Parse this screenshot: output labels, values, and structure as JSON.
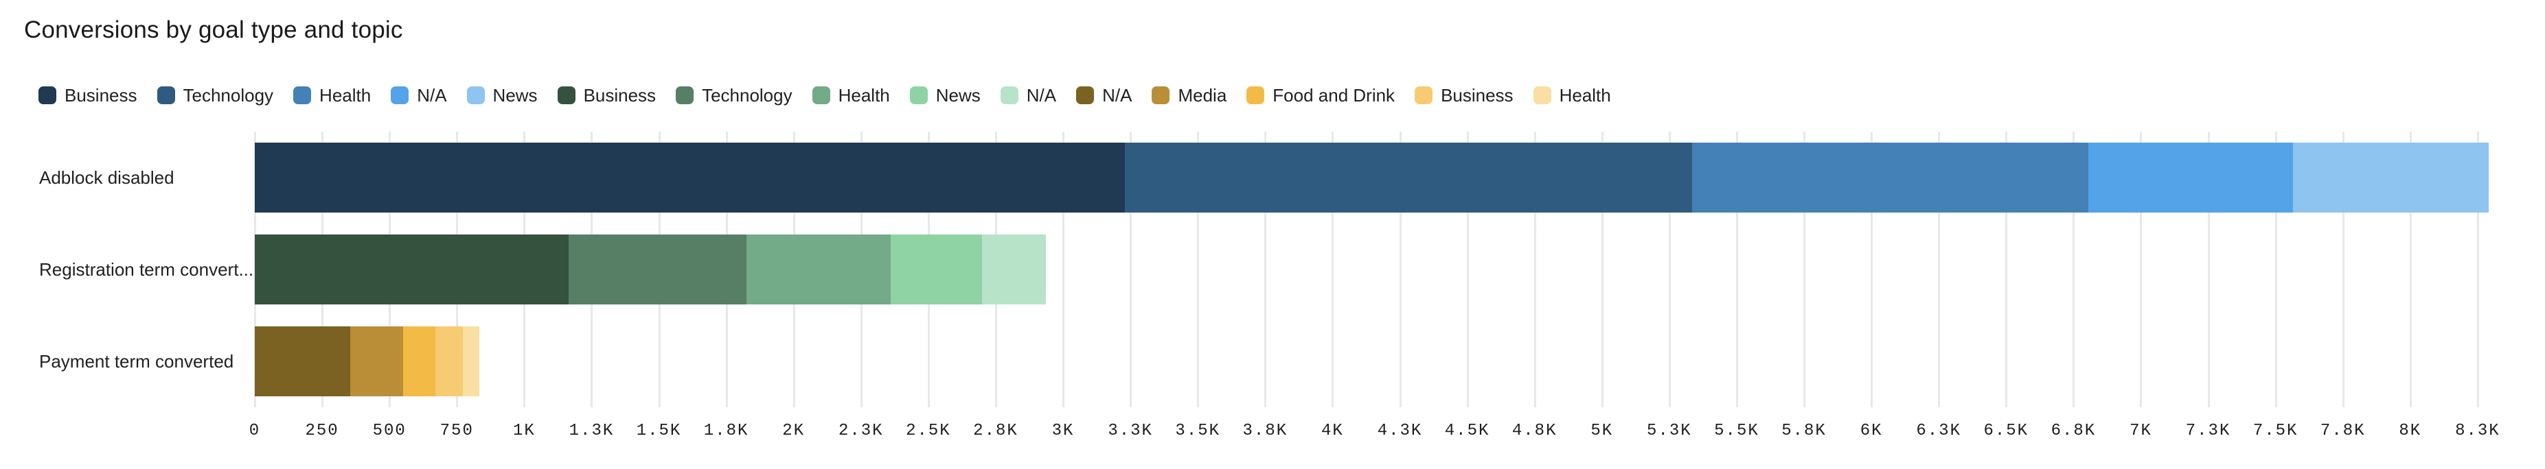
{
  "title": "Conversions by goal type and topic",
  "legend": {
    "items": [
      {
        "label": "Business",
        "color": "#1F3A52"
      },
      {
        "label": "Technology",
        "color": "#2F5B80"
      },
      {
        "label": "Health",
        "color": "#4381B7"
      },
      {
        "label": "N/A",
        "color": "#54A3E8"
      },
      {
        "label": "News",
        "color": "#8EC4F0"
      },
      {
        "label": "Business",
        "color": "#35523F"
      },
      {
        "label": "Technology",
        "color": "#567F66"
      },
      {
        "label": "Health",
        "color": "#73AA87"
      },
      {
        "label": "News",
        "color": "#8FD3A5"
      },
      {
        "label": "N/A",
        "color": "#B7E3C8"
      },
      {
        "label": "N/A",
        "color": "#7B6222"
      },
      {
        "label": "Media",
        "color": "#B98E37"
      },
      {
        "label": "Food and Drink",
        "color": "#F3BB45"
      },
      {
        "label": "Business",
        "color": "#F7CB72"
      },
      {
        "label": "Health",
        "color": "#FADFA2"
      }
    ]
  },
  "chart_data": {
    "type": "bar",
    "subtype": "horizontal-stacked",
    "title": "Conversions by goal type and topic",
    "xlabel": "",
    "ylabel": "",
    "xlim": [
      0,
      8500
    ],
    "tick_step": 250,
    "tick_labels": [
      "0",
      "250",
      "500",
      "750",
      "1K",
      "1.3K",
      "1.5K",
      "1.8K",
      "2K",
      "2.3K",
      "2.5K",
      "2.8K",
      "3K",
      "3.3K",
      "3.5K",
      "3.8K",
      "4K",
      "4.3K",
      "4.5K",
      "4.8K",
      "5K",
      "5.3K",
      "5.5K",
      "5.8K",
      "6K",
      "6.3K",
      "6.5K",
      "6.8K",
      "7K",
      "7.3K",
      "7.5K",
      "7.8K",
      "8K",
      "8.3K"
    ],
    "grid": true,
    "legend_position": "top",
    "rows": [
      {
        "label": "Adblock disabled",
        "segments": [
          {
            "name": "Business",
            "value": 3230,
            "color": "#1F3A52"
          },
          {
            "name": "Technology",
            "value": 2105,
            "color": "#2F5B80"
          },
          {
            "name": "Health",
            "value": 1470,
            "color": "#4381B7"
          },
          {
            "name": "N/A",
            "value": 760,
            "color": "#54A3E8"
          },
          {
            "name": "News",
            "value": 725,
            "color": "#8EC4F0"
          }
        ]
      },
      {
        "label": "Registration term convert...",
        "segments": [
          {
            "name": "Business",
            "value": 1165,
            "color": "#35523F"
          },
          {
            "name": "Technology",
            "value": 660,
            "color": "#567F66"
          },
          {
            "name": "Health",
            "value": 535,
            "color": "#73AA87"
          },
          {
            "name": "News",
            "value": 340,
            "color": "#8FD3A5"
          },
          {
            "name": "N/A",
            "value": 235,
            "color": "#B7E3C8"
          }
        ]
      },
      {
        "label": "Payment term converted",
        "segments": [
          {
            "name": "N/A",
            "value": 355,
            "color": "#7B6222"
          },
          {
            "name": "Media",
            "value": 195,
            "color": "#B98E37"
          },
          {
            "name": "Food and Drink",
            "value": 120,
            "color": "#F3BB45"
          },
          {
            "name": "Business",
            "value": 103,
            "color": "#F7CB72"
          },
          {
            "name": "Health",
            "value": 60,
            "color": "#FADFA2"
          }
        ]
      }
    ],
    "colors": {
      "grid": "#E8E8E8",
      "text": "#202124",
      "tick_text": "#1F1F1F",
      "background": "#FFFFFF"
    }
  }
}
